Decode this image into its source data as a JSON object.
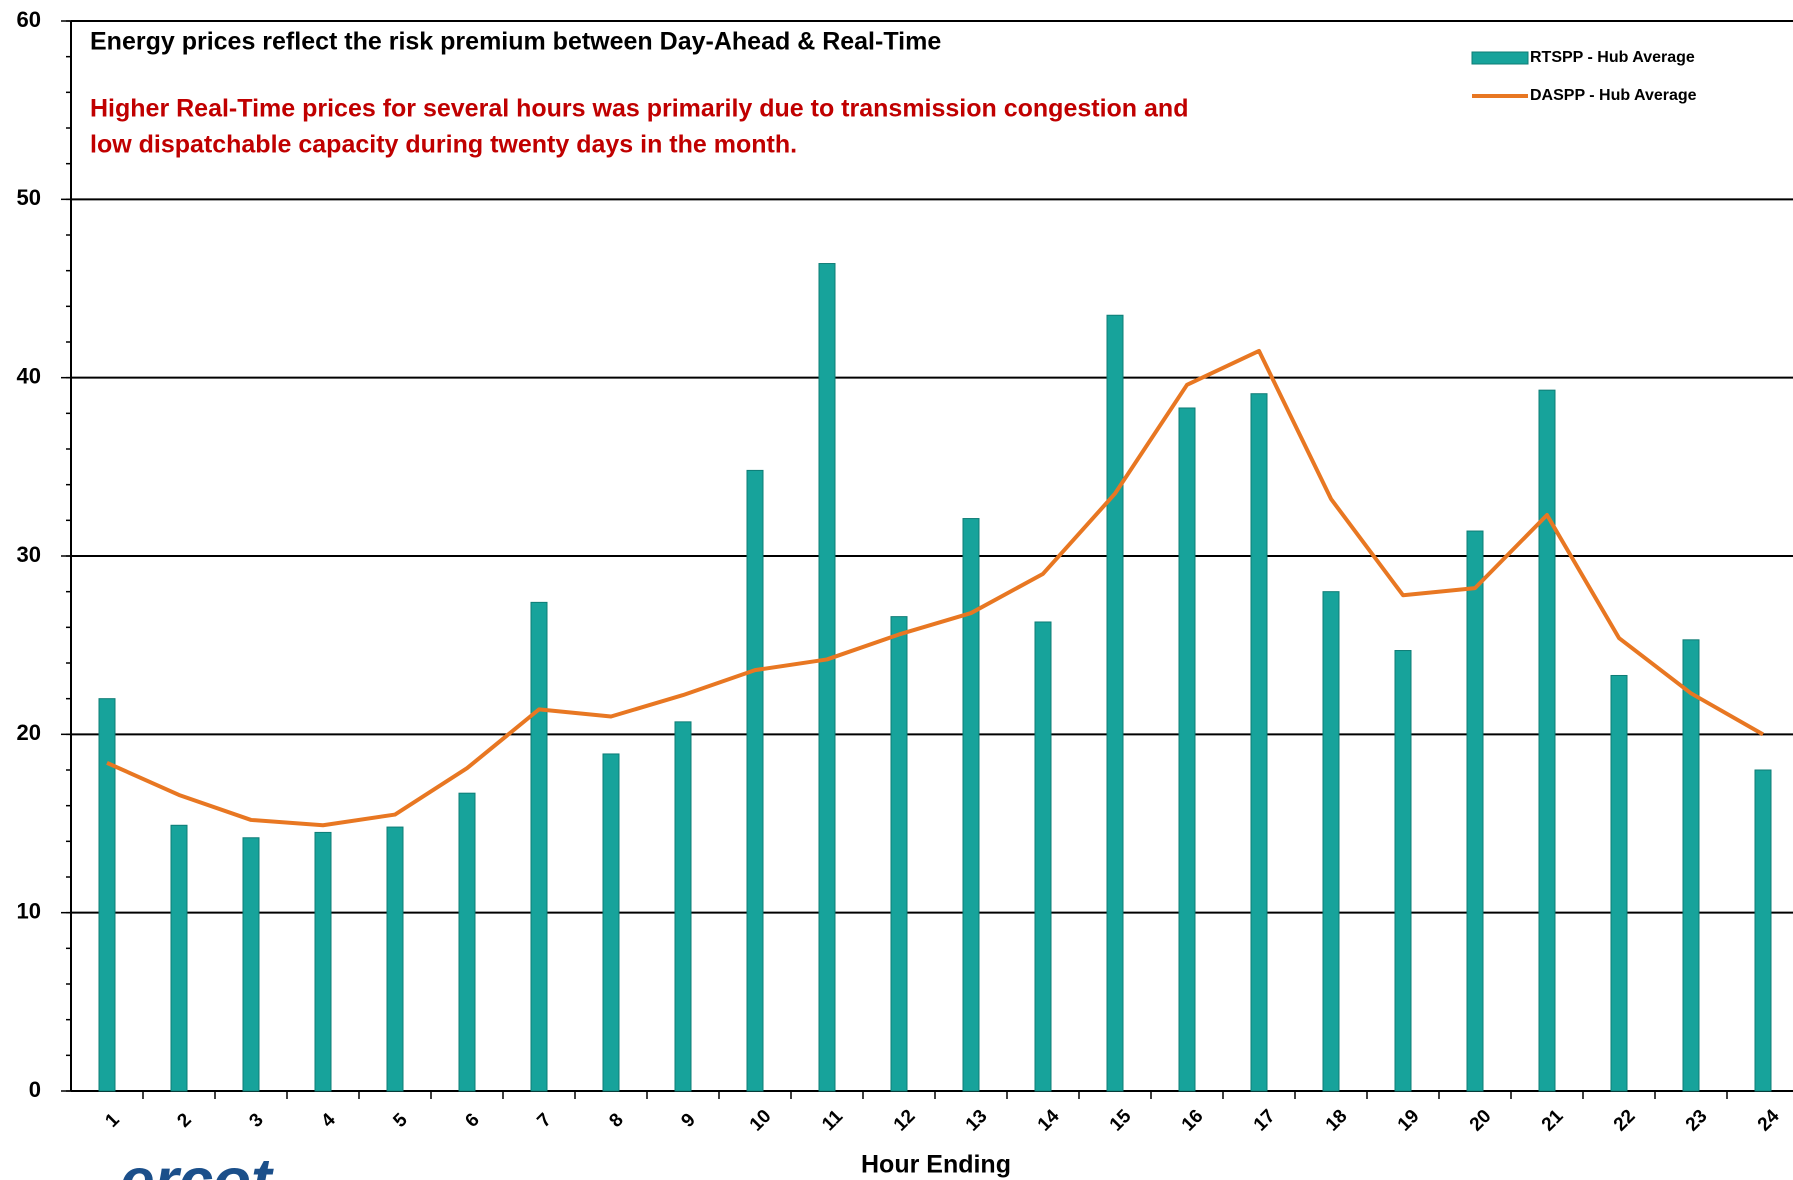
{
  "chart_data": {
    "type": "bar_line",
    "annotations": [
      "Energy prices reflect the risk premium between Day-Ahead & Real-Time",
      "Higher Real-Time prices for several hours was primarily due to transmission congestion and",
      "low dispatchable capacity during twenty days in the month."
    ],
    "x_label": "Hour Ending",
    "logo": "ercot",
    "categories": [
      "1",
      "2",
      "3",
      "4",
      "5",
      "6",
      "7",
      "8",
      "9",
      "10",
      "11",
      "12",
      "13",
      "14",
      "15",
      "16",
      "17",
      "18",
      "19",
      "20",
      "21",
      "22",
      "23",
      "24"
    ],
    "series": [
      {
        "name": "RTSPP - Hub Average",
        "type": "bar",
        "color": "#17a39b",
        "values": [
          22.0,
          14.9,
          14.2,
          14.5,
          14.8,
          16.7,
          27.4,
          18.9,
          20.7,
          34.8,
          46.4,
          26.6,
          32.1,
          26.3,
          43.5,
          38.3,
          39.1,
          28.0,
          24.7,
          31.4,
          39.3,
          23.3,
          25.3,
          18.0
        ]
      },
      {
        "name": "DASPP - Hub Average",
        "type": "line",
        "color": "#e87722",
        "values": [
          18.4,
          16.6,
          15.2,
          14.9,
          15.5,
          18.1,
          21.4,
          21.0,
          22.2,
          23.6,
          24.2,
          25.6,
          26.8,
          29.0,
          33.5,
          39.6,
          41.5,
          33.2,
          27.8,
          28.2,
          32.3,
          25.4,
          22.3,
          20.0
        ]
      }
    ],
    "ylim": [
      0,
      60
    ],
    "yticks": [
      0,
      10,
      20,
      30,
      40,
      50,
      60
    ],
    "grid": true,
    "legend": "upper right"
  }
}
